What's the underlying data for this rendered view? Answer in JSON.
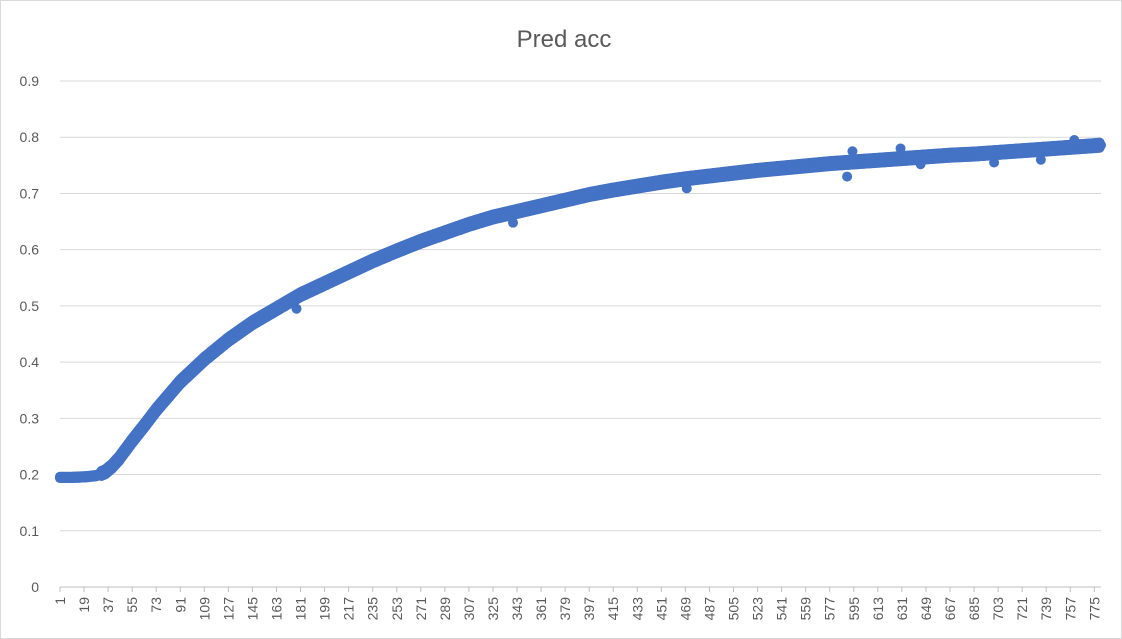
{
  "chart_data": {
    "type": "scatter",
    "title": "Pred acc",
    "xlabel": "",
    "ylabel": "",
    "ylim": [
      0,
      0.9
    ],
    "y_ticks": [
      "0",
      "0.1",
      "0.2",
      "0.3",
      "0.4",
      "0.5",
      "0.6",
      "0.7",
      "0.8",
      "0.9"
    ],
    "x_tick_labels": [
      "1",
      "19",
      "37",
      "55",
      "73",
      "91",
      "109",
      "127",
      "145",
      "163",
      "181",
      "199",
      "217",
      "235",
      "253",
      "271",
      "289",
      "307",
      "325",
      "343",
      "361",
      "379",
      "397",
      "415",
      "433",
      "451",
      "469",
      "487",
      "505",
      "523",
      "541",
      "559",
      "577",
      "595",
      "613",
      "631",
      "649",
      "667",
      "685",
      "703",
      "721",
      "739",
      "757",
      "775"
    ],
    "x_range": [
      1,
      780
    ],
    "grid": true,
    "legend": "none",
    "series_color": "#4472c4",
    "series": [
      {
        "x": [
          1,
          10,
          20,
          28,
          35,
          40,
          45,
          55,
          65,
          73,
          82,
          91,
          100,
          109,
          127,
          145,
          163,
          181,
          199,
          217,
          235,
          253,
          271,
          289,
          307,
          325,
          343,
          361,
          379,
          397,
          415,
          433,
          451,
          469,
          487,
          505,
          523,
          541,
          559,
          577,
          595,
          613,
          631,
          649,
          667,
          685,
          703,
          721,
          739,
          757,
          775,
          780
        ],
        "y": [
          0.195,
          0.195,
          0.196,
          0.198,
          0.205,
          0.215,
          0.228,
          0.26,
          0.29,
          0.315,
          0.34,
          0.365,
          0.385,
          0.405,
          0.44,
          0.47,
          0.495,
          0.52,
          0.54,
          0.56,
          0.58,
          0.598,
          0.615,
          0.63,
          0.645,
          0.658,
          0.668,
          0.678,
          0.688,
          0.698,
          0.706,
          0.713,
          0.72,
          0.726,
          0.731,
          0.736,
          0.741,
          0.745,
          0.749,
          0.753,
          0.756,
          0.759,
          0.762,
          0.765,
          0.768,
          0.77,
          0.773,
          0.776,
          0.779,
          0.782,
          0.785,
          0.786
        ]
      }
    ],
    "outliers": [
      {
        "x": 178,
        "y": 0.495
      },
      {
        "x": 340,
        "y": 0.648
      },
      {
        "x": 470,
        "y": 0.709
      },
      {
        "x": 590,
        "y": 0.73
      },
      {
        "x": 594,
        "y": 0.775
      },
      {
        "x": 630,
        "y": 0.78
      },
      {
        "x": 645,
        "y": 0.752
      },
      {
        "x": 700,
        "y": 0.755
      },
      {
        "x": 735,
        "y": 0.76
      },
      {
        "x": 760,
        "y": 0.795
      }
    ]
  }
}
